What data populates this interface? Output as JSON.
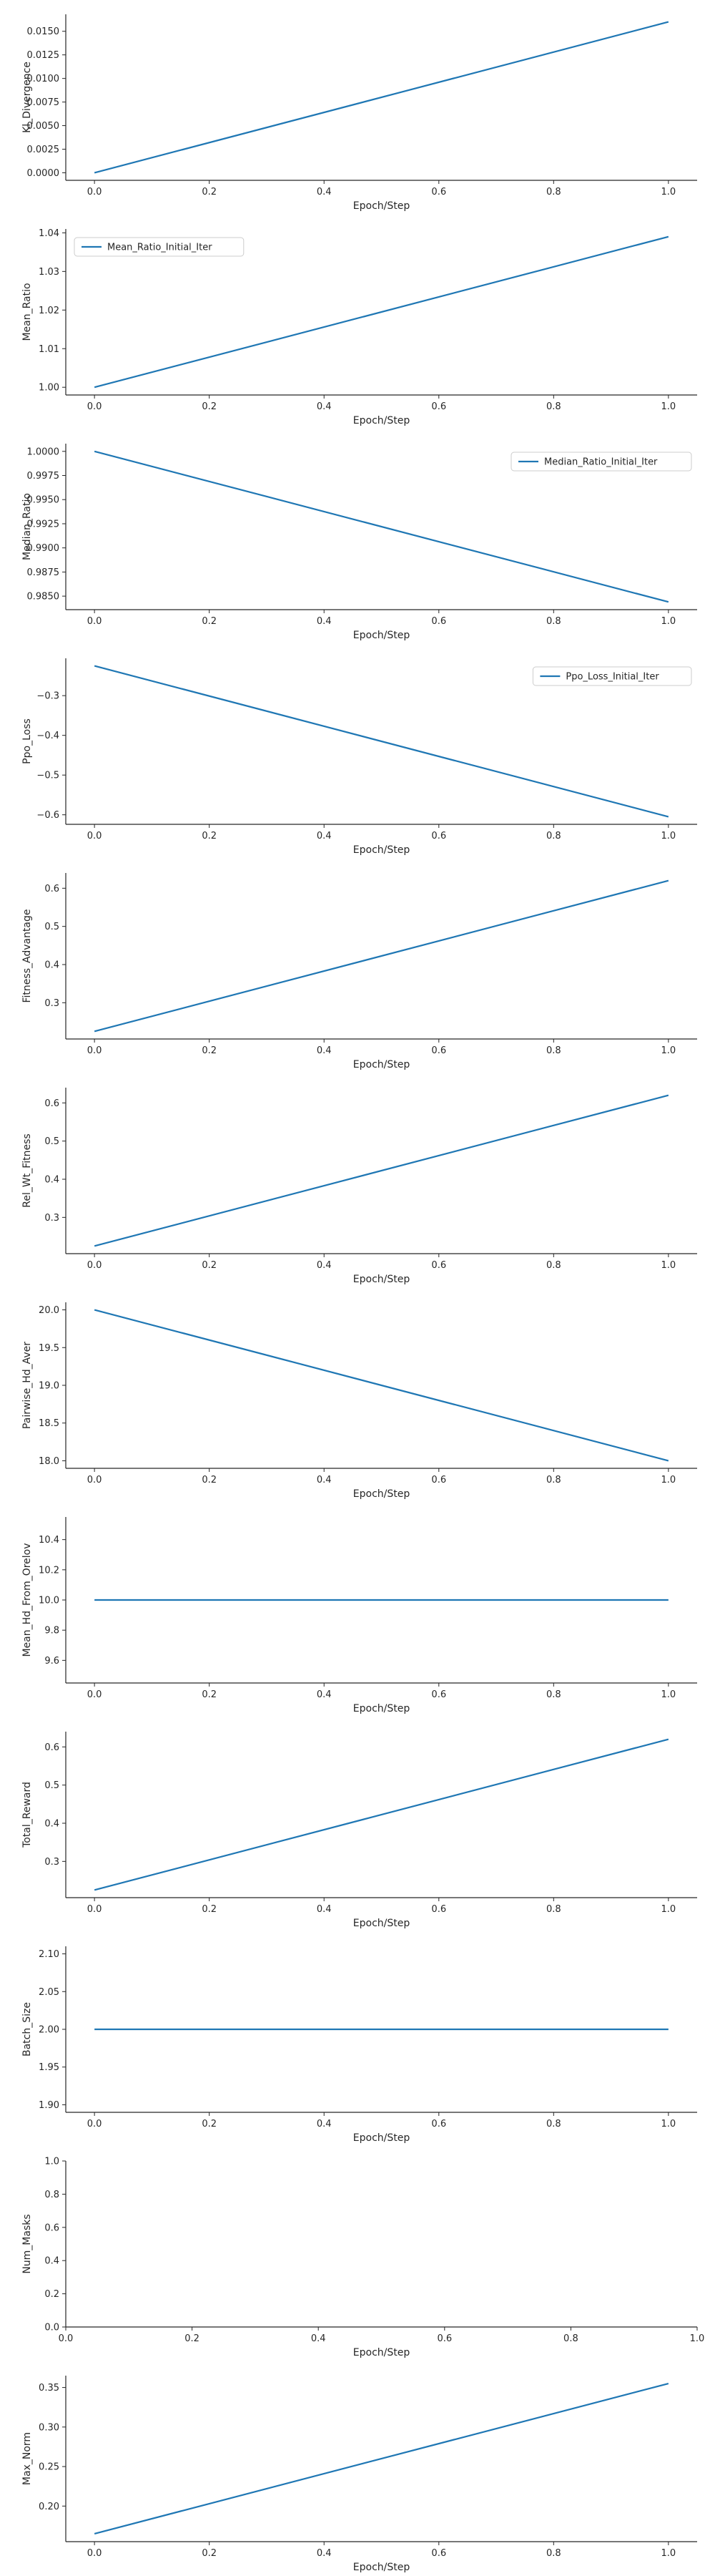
{
  "chart_data": [
    {
      "type": "line",
      "xlabel": "Epoch/Step",
      "ylabel": "Kl_Divergence",
      "legend": null,
      "x": [
        0.0,
        1.0
      ],
      "y": [
        0.0,
        0.016
      ],
      "xlim": [
        -0.05,
        1.05
      ],
      "ylim": [
        -0.0008,
        0.0168
      ],
      "xticks": [
        0.0,
        0.2,
        0.4,
        0.6,
        0.8,
        1.0
      ],
      "xtick_labels": [
        "0.0",
        "0.2",
        "0.4",
        "0.6",
        "0.8",
        "1.0"
      ],
      "yticks": [
        0.0,
        0.0025,
        0.005,
        0.0075,
        0.01,
        0.0125,
        0.015
      ],
      "ytick_labels": [
        "0.0000",
        "0.0025",
        "0.0050",
        "0.0075",
        "0.0100",
        "0.0125",
        "0.0150"
      ],
      "grid": false
    },
    {
      "type": "line",
      "xlabel": "Epoch/Step",
      "ylabel": "Mean_Ratio",
      "legend": {
        "label": "Mean_Ratio_Initial_Iter",
        "position": "upper-left"
      },
      "x": [
        0.0,
        1.0
      ],
      "y": [
        1.0,
        1.039
      ],
      "xlim": [
        -0.05,
        1.05
      ],
      "ylim": [
        0.998,
        1.041
      ],
      "xticks": [
        0.0,
        0.2,
        0.4,
        0.6,
        0.8,
        1.0
      ],
      "xtick_labels": [
        "0.0",
        "0.2",
        "0.4",
        "0.6",
        "0.8",
        "1.0"
      ],
      "yticks": [
        1.0,
        1.01,
        1.02,
        1.03,
        1.04
      ],
      "ytick_labels": [
        "1.00",
        "1.01",
        "1.02",
        "1.03",
        "1.04"
      ],
      "grid": false
    },
    {
      "type": "line",
      "xlabel": "Epoch/Step",
      "ylabel": "Median_Ratio",
      "legend": {
        "label": "Median_Ratio_Initial_Iter",
        "position": "upper-right"
      },
      "x": [
        0.0,
        1.0
      ],
      "y": [
        1.0,
        0.9844
      ],
      "xlim": [
        -0.05,
        1.05
      ],
      "ylim": [
        0.9836,
        1.0008
      ],
      "xticks": [
        0.0,
        0.2,
        0.4,
        0.6,
        0.8,
        1.0
      ],
      "xtick_labels": [
        "0.0",
        "0.2",
        "0.4",
        "0.6",
        "0.8",
        "1.0"
      ],
      "yticks": [
        0.985,
        0.9875,
        0.99,
        0.9925,
        0.995,
        0.9975,
        1.0
      ],
      "ytick_labels": [
        "0.9850",
        "0.9875",
        "0.9900",
        "0.9925",
        "0.9950",
        "0.9975",
        "1.0000"
      ],
      "grid": false
    },
    {
      "type": "line",
      "xlabel": "Epoch/Step",
      "ylabel": "Ppo_Loss",
      "legend": {
        "label": "Ppo_Loss_Initial_Iter",
        "position": "upper-right"
      },
      "x": [
        0.0,
        1.0
      ],
      "y": [
        -0.225,
        -0.605
      ],
      "xlim": [
        -0.05,
        1.05
      ],
      "ylim": [
        -0.624,
        -0.206
      ],
      "xticks": [
        0.0,
        0.2,
        0.4,
        0.6,
        0.8,
        1.0
      ],
      "xtick_labels": [
        "0.0",
        "0.2",
        "0.4",
        "0.6",
        "0.8",
        "1.0"
      ],
      "yticks": [
        -0.3,
        -0.4,
        -0.5,
        -0.6
      ],
      "ytick_labels": [
        "−0.3",
        "−0.4",
        "−0.5",
        "−0.6"
      ],
      "grid": false
    },
    {
      "type": "line",
      "xlabel": "Epoch/Step",
      "ylabel": "Fitness_Advantage",
      "legend": null,
      "x": [
        0.0,
        1.0
      ],
      "y": [
        0.225,
        0.62
      ],
      "xlim": [
        -0.05,
        1.05
      ],
      "ylim": [
        0.205,
        0.64
      ],
      "xticks": [
        0.0,
        0.2,
        0.4,
        0.6,
        0.8,
        1.0
      ],
      "xtick_labels": [
        "0.0",
        "0.2",
        "0.4",
        "0.6",
        "0.8",
        "1.0"
      ],
      "yticks": [
        0.3,
        0.4,
        0.5,
        0.6
      ],
      "ytick_labels": [
        "0.3",
        "0.4",
        "0.5",
        "0.6"
      ],
      "grid": false
    },
    {
      "type": "line",
      "xlabel": "Epoch/Step",
      "ylabel": "Rel_Wt_Fitness",
      "legend": null,
      "x": [
        0.0,
        1.0
      ],
      "y": [
        0.225,
        0.62
      ],
      "xlim": [
        -0.05,
        1.05
      ],
      "ylim": [
        0.205,
        0.64
      ],
      "xticks": [
        0.0,
        0.2,
        0.4,
        0.6,
        0.8,
        1.0
      ],
      "xtick_labels": [
        "0.0",
        "0.2",
        "0.4",
        "0.6",
        "0.8",
        "1.0"
      ],
      "yticks": [
        0.3,
        0.4,
        0.5,
        0.6
      ],
      "ytick_labels": [
        "0.3",
        "0.4",
        "0.5",
        "0.6"
      ],
      "grid": false
    },
    {
      "type": "line",
      "xlabel": "Epoch/Step",
      "ylabel": "Pairwise_Hd_Aver",
      "legend": null,
      "x": [
        0.0,
        1.0
      ],
      "y": [
        20.0,
        18.0
      ],
      "xlim": [
        -0.05,
        1.05
      ],
      "ylim": [
        17.9,
        20.1
      ],
      "xticks": [
        0.0,
        0.2,
        0.4,
        0.6,
        0.8,
        1.0
      ],
      "xtick_labels": [
        "0.0",
        "0.2",
        "0.4",
        "0.6",
        "0.8",
        "1.0"
      ],
      "yticks": [
        18.0,
        18.5,
        19.0,
        19.5,
        20.0
      ],
      "ytick_labels": [
        "18.0",
        "18.5",
        "19.0",
        "19.5",
        "20.0"
      ],
      "grid": false
    },
    {
      "type": "line",
      "xlabel": "Epoch/Step",
      "ylabel": "Mean_Hd_From_Orelov",
      "legend": null,
      "x": [
        0.0,
        1.0
      ],
      "y": [
        10.0,
        10.0
      ],
      "xlim": [
        -0.05,
        1.05
      ],
      "ylim": [
        9.45,
        10.55
      ],
      "xticks": [
        0.0,
        0.2,
        0.4,
        0.6,
        0.8,
        1.0
      ],
      "xtick_labels": [
        "0.0",
        "0.2",
        "0.4",
        "0.6",
        "0.8",
        "1.0"
      ],
      "yticks": [
        9.6,
        9.8,
        10.0,
        10.2,
        10.4
      ],
      "ytick_labels": [
        "9.6",
        "9.8",
        "10.0",
        "10.2",
        "10.4"
      ],
      "grid": false
    },
    {
      "type": "line",
      "xlabel": "Epoch/Step",
      "ylabel": "Total_Reward",
      "legend": null,
      "x": [
        0.0,
        1.0
      ],
      "y": [
        0.225,
        0.62
      ],
      "xlim": [
        -0.05,
        1.05
      ],
      "ylim": [
        0.205,
        0.64
      ],
      "xticks": [
        0.0,
        0.2,
        0.4,
        0.6,
        0.8,
        1.0
      ],
      "xtick_labels": [
        "0.0",
        "0.2",
        "0.4",
        "0.6",
        "0.8",
        "1.0"
      ],
      "yticks": [
        0.3,
        0.4,
        0.5,
        0.6
      ],
      "ytick_labels": [
        "0.3",
        "0.4",
        "0.5",
        "0.6"
      ],
      "grid": false
    },
    {
      "type": "line",
      "xlabel": "Epoch/Step",
      "ylabel": "Batch_Size",
      "legend": null,
      "x": [
        0.0,
        1.0
      ],
      "y": [
        2.0,
        2.0
      ],
      "xlim": [
        -0.05,
        1.05
      ],
      "ylim": [
        1.89,
        2.11
      ],
      "xticks": [
        0.0,
        0.2,
        0.4,
        0.6,
        0.8,
        1.0
      ],
      "xtick_labels": [
        "0.0",
        "0.2",
        "0.4",
        "0.6",
        "0.8",
        "1.0"
      ],
      "yticks": [
        1.9,
        1.95,
        2.0,
        2.05,
        2.1
      ],
      "ytick_labels": [
        "1.90",
        "1.95",
        "2.00",
        "2.05",
        "2.10"
      ],
      "grid": false
    },
    {
      "type": "line",
      "xlabel": "Epoch/Step",
      "ylabel": "Num_Masks",
      "legend": null,
      "x": [],
      "y": [],
      "xlim": [
        0.0,
        1.0
      ],
      "ylim": [
        0.0,
        1.0
      ],
      "xticks": [
        0.0,
        0.2,
        0.4,
        0.6,
        0.8,
        1.0
      ],
      "xtick_labels": [
        "0.0",
        "0.2",
        "0.4",
        "0.6",
        "0.8",
        "1.0"
      ],
      "yticks": [
        0.0,
        0.2,
        0.4,
        0.6,
        0.8,
        1.0
      ],
      "ytick_labels": [
        "0.0",
        "0.2",
        "0.4",
        "0.6",
        "0.8",
        "1.0"
      ],
      "grid": false
    },
    {
      "type": "line",
      "xlabel": "Epoch/Step",
      "ylabel": "Max_Norm",
      "legend": null,
      "x": [
        0.0,
        1.0
      ],
      "y": [
        0.165,
        0.355
      ],
      "xlim": [
        -0.05,
        1.05
      ],
      "ylim": [
        0.155,
        0.365
      ],
      "xticks": [
        0.0,
        0.2,
        0.4,
        0.6,
        0.8,
        1.0
      ],
      "xtick_labels": [
        "0.0",
        "0.2",
        "0.4",
        "0.6",
        "0.8",
        "1.0"
      ],
      "yticks": [
        0.2,
        0.25,
        0.3,
        0.35
      ],
      "ytick_labels": [
        "0.20",
        "0.25",
        "0.30",
        "0.35"
      ],
      "grid": false
    }
  ],
  "colors": {
    "line": "#1f77b4",
    "axis": "#262626",
    "legend_border": "#cccccc"
  }
}
